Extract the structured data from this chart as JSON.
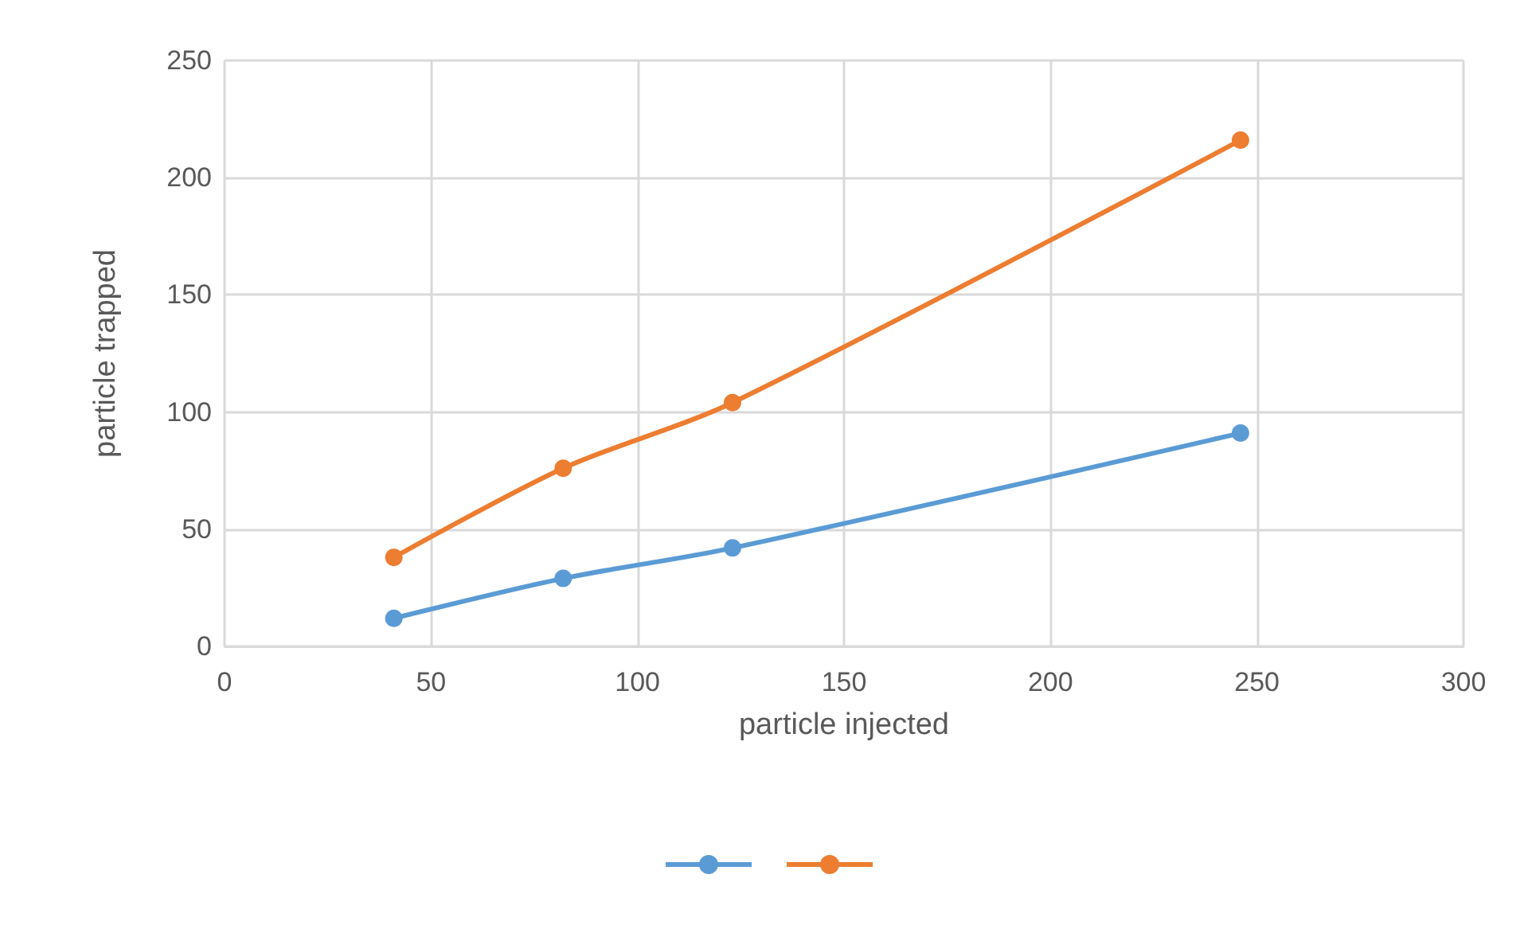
{
  "chart_data": {
    "type": "line",
    "xlabel": "particle injected",
    "ylabel": "particle trapped",
    "x": [
      41,
      82,
      123,
      246
    ],
    "series": [
      {
        "color": "#5b9bd5",
        "values": [
          12,
          29,
          42,
          91
        ]
      },
      {
        "color": "#ed7d31",
        "values": [
          38,
          76,
          104,
          216
        ]
      }
    ],
    "xlim": [
      0,
      300
    ],
    "xticks": [
      0,
      50,
      100,
      150,
      200,
      250,
      300
    ],
    "ylim": [
      0,
      250
    ],
    "yticks": [
      0,
      50,
      100,
      150,
      200,
      250
    ],
    "grid": true,
    "marker": "circle",
    "line_style": "solid"
  }
}
